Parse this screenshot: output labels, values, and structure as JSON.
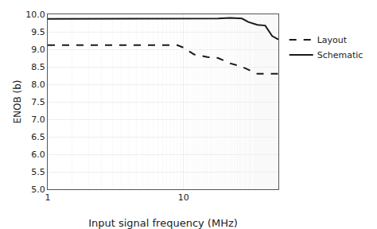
{
  "chart_data": {
    "type": "line",
    "xlabel": "Input signal frequency (MHz)",
    "ylabel": "ENOB (b)",
    "log": "x",
    "grid": true,
    "legend": "right",
    "xlim": [
      1,
      50
    ],
    "xticks": [
      1,
      10
    ],
    "ylim": [
      5,
      10
    ],
    "yticks": [
      {
        "value": 5,
        "label": "5.0"
      },
      5.5,
      {
        "value": 6,
        "label": "6.0"
      },
      6.5,
      {
        "value": 7,
        "label": "7.0"
      },
      7.5,
      {
        "value": 8,
        "label": "8.0"
      },
      8.5,
      {
        "value": 9,
        "label": "9.0"
      },
      9.5,
      {
        "value": 10,
        "label": "10.0"
      }
    ],
    "series": [
      {
        "name": "Layout",
        "color": "#1a1a1a",
        "line_style": "dashed",
        "x": [
          1,
          1.5,
          2,
          2.5,
          3,
          4,
          5,
          6,
          7,
          8,
          9,
          10,
          12,
          15,
          18,
          22,
          27,
          35,
          50
        ],
        "values": [
          9.12,
          9.12,
          9.12,
          9.12,
          9.12,
          9.12,
          9.12,
          9.12,
          9.12,
          9.12,
          9.12,
          9.05,
          8.85,
          8.78,
          8.75,
          8.6,
          8.5,
          8.3,
          8.3
        ]
      },
      {
        "name": "Schematic",
        "color": "#1a1a1a",
        "line_style": "solid",
        "x": [
          1,
          1.5,
          2,
          2.5,
          3,
          4,
          5,
          6,
          7,
          8,
          9,
          10,
          12,
          15,
          18,
          22,
          27,
          30,
          35,
          40,
          45,
          50
        ],
        "values": [
          9.87,
          9.87,
          9.87,
          9.87,
          9.87,
          9.87,
          9.87,
          9.87,
          9.87,
          9.87,
          9.87,
          9.87,
          9.87,
          9.87,
          9.88,
          9.9,
          9.88,
          9.78,
          9.7,
          9.68,
          9.38,
          9.28
        ]
      }
    ]
  }
}
